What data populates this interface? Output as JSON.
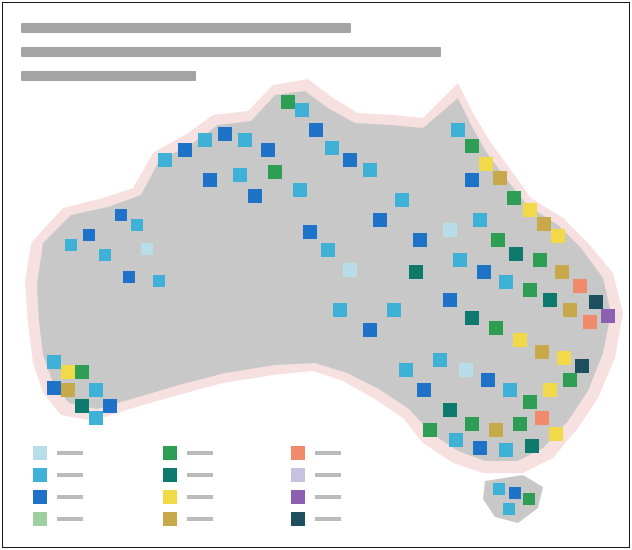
{
  "map": {
    "title_lines": [
      "",
      "",
      ""
    ],
    "colors": {
      "land": "#c8c8c8",
      "coast_fringe": "#f3d5d5",
      "ocean": "#ffffff",
      "frame": "#1a1a1a"
    },
    "legend": {
      "items": [
        {
          "color": "#b9dde8",
          "label": ""
        },
        {
          "color": "#3fb0d6",
          "label": ""
        },
        {
          "color": "#1e73c9",
          "label": ""
        },
        {
          "color": "#9ecf9e",
          "label": ""
        },
        {
          "color": "#2e9e55",
          "label": ""
        },
        {
          "color": "#0e7a6e",
          "label": ""
        },
        {
          "color": "#f2d94a",
          "label": ""
        },
        {
          "color": "#c7a84a",
          "label": ""
        },
        {
          "color": "#f08a6a",
          "label": ""
        },
        {
          "color": "#c7c2e0",
          "label": ""
        },
        {
          "color": "#8c5fb0",
          "label": ""
        },
        {
          "color": "#1d4f5e",
          "label": ""
        }
      ]
    }
  }
}
